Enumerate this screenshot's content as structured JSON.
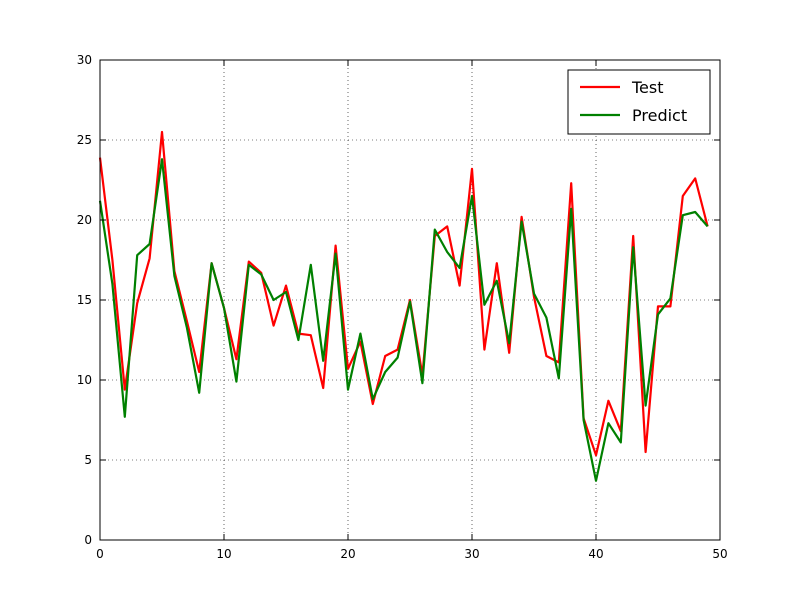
{
  "chart_data": {
    "type": "line",
    "title": "",
    "xlabel": "",
    "ylabel": "",
    "xlim": [
      0,
      50
    ],
    "ylim": [
      0,
      30
    ],
    "xticks": [
      0,
      10,
      20,
      30,
      40,
      50
    ],
    "yticks": [
      0,
      5,
      10,
      15,
      20,
      25,
      30
    ],
    "grid": true,
    "legend_position": "top-right",
    "x": [
      0,
      1,
      2,
      3,
      4,
      5,
      6,
      7,
      8,
      9,
      10,
      11,
      12,
      13,
      14,
      15,
      16,
      17,
      18,
      19,
      20,
      21,
      22,
      23,
      24,
      25,
      26,
      27,
      28,
      29,
      30,
      31,
      32,
      33,
      34,
      35,
      36,
      37,
      38,
      39,
      40,
      41,
      42,
      43,
      44,
      45,
      46,
      47,
      48,
      49
    ],
    "series": [
      {
        "name": "Test",
        "color": "#ff0000",
        "values": [
          23.9,
          17.5,
          9.4,
          14.8,
          17.6,
          25.5,
          16.8,
          13.7,
          10.5,
          17.3,
          14.5,
          11.3,
          17.4,
          16.7,
          13.4,
          15.9,
          12.9,
          12.8,
          9.5,
          18.4,
          10.7,
          12.4,
          8.5,
          11.5,
          11.9,
          15.0,
          10.3,
          19.0,
          19.6,
          15.9,
          23.2,
          11.9,
          17.3,
          11.7,
          20.2,
          15.2,
          11.5,
          11.1,
          22.3,
          7.6,
          5.3,
          8.7,
          6.8,
          19.0,
          5.5,
          14.6,
          14.6,
          21.5,
          22.6,
          19.6
        ]
      },
      {
        "name": "Predict",
        "color": "#008000",
        "values": [
          21.2,
          16.0,
          7.7,
          17.8,
          18.5,
          23.8,
          16.5,
          13.3,
          9.2,
          17.3,
          14.5,
          9.9,
          17.2,
          16.6,
          15.0,
          15.5,
          12.5,
          17.2,
          11.2,
          17.9,
          9.4,
          12.9,
          8.8,
          10.5,
          11.4,
          14.9,
          9.8,
          19.4,
          18.0,
          17.0,
          21.5,
          14.7,
          16.2,
          12.3,
          19.9,
          15.4,
          13.9,
          10.1,
          20.7,
          7.5,
          3.7,
          7.3,
          6.1,
          18.3,
          8.4,
          14.1,
          15.1,
          20.3,
          20.5,
          19.6
        ]
      }
    ]
  }
}
